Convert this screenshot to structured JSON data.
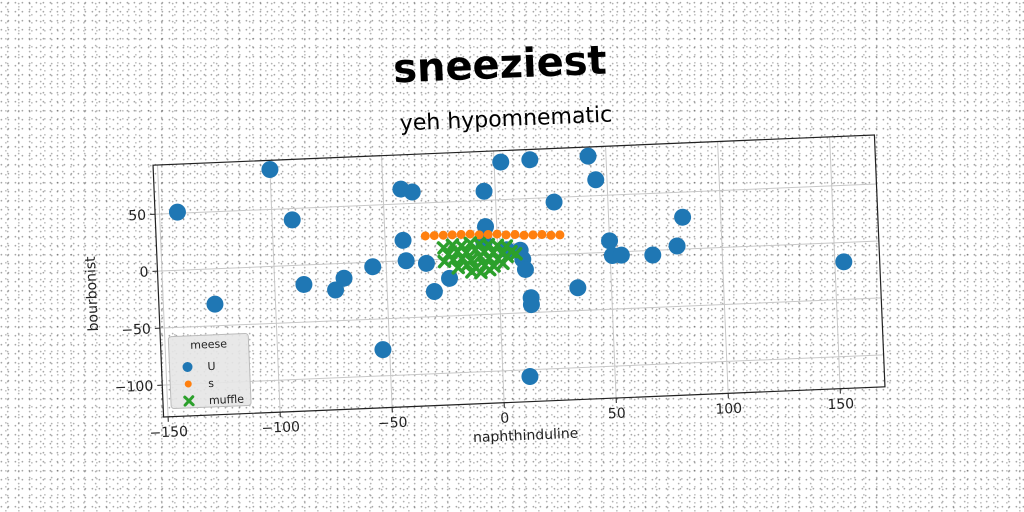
{
  "chart_data": {
    "type": "scatter",
    "title": "sneeziest",
    "subtitle": "yeh hypomnematic",
    "xlabel": "naphthinduline",
    "ylabel": "bourbonist",
    "xlim": [
      -152,
      170
    ],
    "ylim": [
      -128,
      93
    ],
    "xticks": [
      -150,
      -100,
      -50,
      0,
      50,
      100,
      150
    ],
    "xtick_labels": [
      "−150",
      "−100",
      "−50",
      "0",
      "50",
      "100",
      "150"
    ],
    "yticks": [
      -100,
      -50,
      0,
      50
    ],
    "ytick_labels": [
      "−100",
      "−50",
      "0",
      "50"
    ],
    "grid": true,
    "legend": {
      "title": "meese",
      "placement": "lower-left"
    },
    "series": [
      {
        "name": "U",
        "marker": "circle",
        "color": "#1f77b4",
        "points": [
          [
            -142,
            51
          ],
          [
            -100,
            85
          ],
          [
            -127,
            -31
          ],
          [
            -91,
            40
          ],
          [
            -87,
            -17
          ],
          [
            -73,
            -23
          ],
          [
            -69,
            -13
          ],
          [
            -56,
            -4
          ],
          [
            -42,
            63
          ],
          [
            -37,
            60
          ],
          [
            -42,
            18
          ],
          [
            -41,
            0
          ],
          [
            -32,
            -3
          ],
          [
            -29,
            -28
          ],
          [
            -22,
            -17
          ],
          [
            -5,
            58
          ],
          [
            -5,
            27
          ],
          [
            -6,
            13
          ],
          [
            3,
            83
          ],
          [
            16,
            84
          ],
          [
            4,
            6
          ],
          [
            10,
            5
          ],
          [
            11,
            -3
          ],
          [
            12,
            -12
          ],
          [
            14,
            -37
          ],
          [
            14,
            -43
          ],
          [
            12,
            -106
          ],
          [
            26,
            46
          ],
          [
            35,
            -30
          ],
          [
            42,
            85
          ],
          [
            45,
            64
          ],
          [
            50,
            10
          ],
          [
            51,
            -3
          ],
          [
            55,
            -3
          ],
          [
            69,
            -4
          ],
          [
            80,
            3
          ],
          [
            83,
            28
          ],
          [
            154,
            -17
          ],
          [
            -53,
            -77
          ]
        ]
      },
      {
        "name": "s",
        "marker": "small-circle",
        "color": "#ff7f0e",
        "points": [
          [
            -32,
            21
          ],
          [
            -28,
            21
          ],
          [
            -24,
            21
          ],
          [
            -20,
            21
          ],
          [
            -16,
            21
          ],
          [
            -12,
            21
          ],
          [
            -8,
            20
          ],
          [
            -4,
            20
          ],
          [
            0,
            20
          ],
          [
            4,
            19
          ],
          [
            8,
            19
          ],
          [
            12,
            18
          ],
          [
            16,
            18
          ],
          [
            20,
            18
          ],
          [
            24,
            17
          ],
          [
            28,
            17
          ]
        ]
      },
      {
        "name": "muffle",
        "marker": "x",
        "color": "#2ca02c",
        "points": [
          [
            -24,
            10
          ],
          [
            -20,
            12
          ],
          [
            -16,
            11
          ],
          [
            -12,
            13
          ],
          [
            -8,
            12
          ],
          [
            -4,
            11
          ],
          [
            0,
            10
          ],
          [
            4,
            9
          ],
          [
            -22,
            4
          ],
          [
            -18,
            6
          ],
          [
            -14,
            5
          ],
          [
            -10,
            7
          ],
          [
            -6,
            5
          ],
          [
            -2,
            4
          ],
          [
            2,
            3
          ],
          [
            6,
            4
          ],
          [
            -24,
            -2
          ],
          [
            -20,
            -1
          ],
          [
            -16,
            0
          ],
          [
            -12,
            -2
          ],
          [
            -8,
            1
          ],
          [
            -4,
            -1
          ],
          [
            0,
            -2
          ],
          [
            4,
            0
          ],
          [
            -18,
            -8
          ],
          [
            -14,
            -6
          ],
          [
            -10,
            -9
          ],
          [
            -6,
            -7
          ],
          [
            -2,
            -8
          ],
          [
            2,
            -6
          ],
          [
            -12,
            -12
          ],
          [
            -8,
            -13
          ],
          [
            -4,
            -11
          ],
          [
            8,
            2
          ]
        ]
      }
    ]
  }
}
